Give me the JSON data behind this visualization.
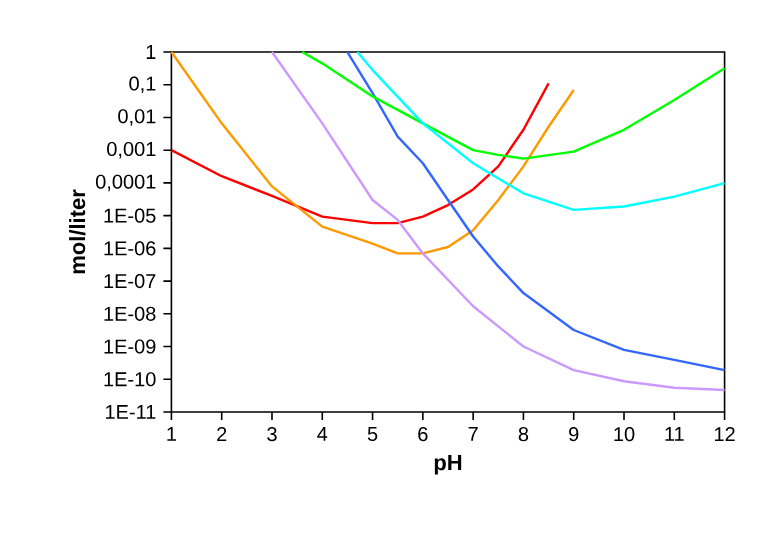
{
  "chart_data": {
    "type": "line",
    "xlabel": "pH",
    "ylabel": "mol/liter",
    "log": "y",
    "marker": "none",
    "xlim": [
      1,
      12
    ],
    "xticks": [
      1,
      2,
      3,
      4,
      5,
      6,
      7,
      8,
      9,
      10,
      11,
      12
    ],
    "ylim": [
      1e-11,
      1
    ],
    "yticks": [
      1,
      {
        "value": 0.1,
        "label": "0,1"
      },
      {
        "value": 0.01,
        "label": "0,01"
      },
      {
        "value": 0.001,
        "label": "0,001"
      },
      {
        "value": 0.0001,
        "label": "0,0001"
      },
      {
        "value": 1e-05,
        "label": "1E-05"
      },
      {
        "value": 1e-06,
        "label": "1E-06"
      },
      {
        "value": 1e-07,
        "label": "1E-07"
      },
      {
        "value": 1e-08,
        "label": "1E-08"
      },
      {
        "value": 1e-09,
        "label": "1E-09"
      },
      {
        "value": 1e-10,
        "label": "1E-10"
      },
      {
        "value": 1e-11,
        "label": "1E-11"
      }
    ],
    "series": [
      {
        "color": "#ff0000",
        "x": [
          1,
          2,
          3,
          4,
          5,
          5.5,
          6,
          6.5,
          7,
          7.5,
          8,
          8.5
        ],
        "values": [
          0.001,
          0.00016,
          4e-05,
          9.3e-06,
          5.9e-06,
          5.9e-06,
          9.3e-06,
          2.1e-05,
          6.3e-05,
          0.00032,
          0.0042,
          0.11
        ]
      },
      {
        "color": "#ff9900",
        "x": [
          1,
          2,
          3,
          4,
          5,
          5.5,
          6,
          6.5,
          7,
          7.5,
          8,
          8.5,
          9
        ],
        "values": [
          1,
          0.0066,
          7.8e-05,
          4.6e-06,
          1.4e-06,
          7e-07,
          7e-07,
          1.1e-06,
          3.6e-06,
          3e-05,
          0.00032,
          0.0052,
          0.069
        ]
      },
      {
        "color": "#cc99ff",
        "x": [
          3,
          4,
          5,
          5.5,
          6,
          7,
          8,
          9,
          10,
          11,
          12
        ],
        "values": [
          1,
          0.0066,
          3e-05,
          7.4e-06,
          7e-07,
          1.7e-08,
          1e-09,
          1.9e-10,
          8.7e-11,
          5.5e-11,
          4.7e-11
        ]
      },
      {
        "color": "#3366ff",
        "x": [
          4.5,
          5,
          5.5,
          6,
          6.5,
          7,
          7.5,
          8,
          9,
          10,
          11,
          12
        ],
        "values": [
          1,
          0.055,
          0.0026,
          0.0004,
          3e-05,
          2.3e-06,
          2.8e-07,
          4.3e-08,
          3.2e-09,
          7.9e-10,
          3.9e-10,
          1.9e-10
        ]
      },
      {
        "color": "#00ff00",
        "x": [
          3.6,
          4,
          5,
          6,
          7,
          7.5,
          8,
          9,
          10,
          11,
          12
        ],
        "values": [
          1,
          0.45,
          0.044,
          0.0066,
          0.001,
          0.00072,
          0.00055,
          0.0009,
          0.0042,
          0.034,
          0.32
        ]
      },
      {
        "color": "#00ffff",
        "x": [
          4.7,
          5,
          6,
          7,
          8,
          9,
          10,
          11,
          12
        ],
        "values": [
          1,
          0.28,
          0.0066,
          0.0004,
          4.8e-05,
          1.5e-05,
          1.9e-05,
          3.8e-05,
          9.8e-05
        ]
      }
    ]
  }
}
